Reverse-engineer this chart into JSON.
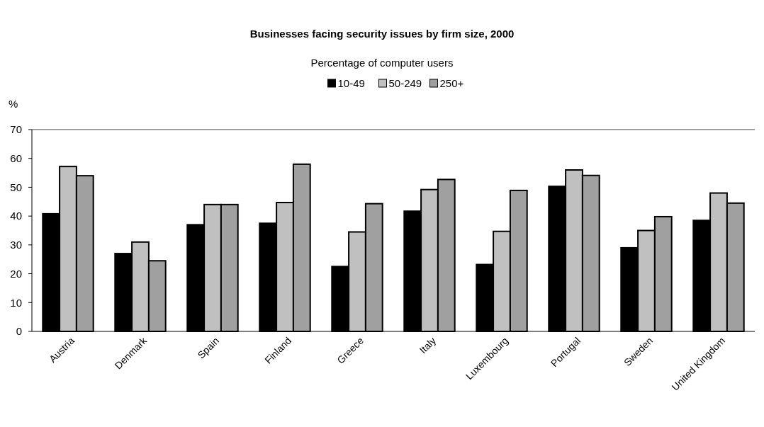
{
  "chart_data": {
    "type": "bar",
    "title": "Businesses facing security issues by firm size, 2000",
    "subtitle": "Percentage of computer users",
    "ylabel": "%",
    "categories": [
      "Austria",
      "Denmark",
      "Spain",
      "Finland",
      "Greece",
      "Italy",
      "Luxembourg",
      "Portugal",
      "Sweden",
      "United Kingdom"
    ],
    "series": [
      {
        "name": "10-49",
        "color": "#000000",
        "values": [
          40.8,
          27,
          37,
          37.5,
          22.5,
          41.7,
          23.2,
          50.3,
          29,
          38.5
        ]
      },
      {
        "name": "50-249",
        "color": "#c0c0c0",
        "values": [
          57.2,
          31,
          44,
          44.7,
          34.5,
          49.2,
          34.7,
          56,
          35,
          48
        ]
      },
      {
        "name": "250+",
        "color": "#a0a0a0",
        "values": [
          54,
          24.5,
          44,
          58,
          44.3,
          52.7,
          48.9,
          54.1,
          39.8,
          44.5
        ]
      }
    ],
    "ylim": [
      0,
      70
    ],
    "yticks": [
      0,
      10,
      20,
      30,
      40,
      50,
      60,
      70
    ],
    "grid": false,
    "legend": "top"
  }
}
